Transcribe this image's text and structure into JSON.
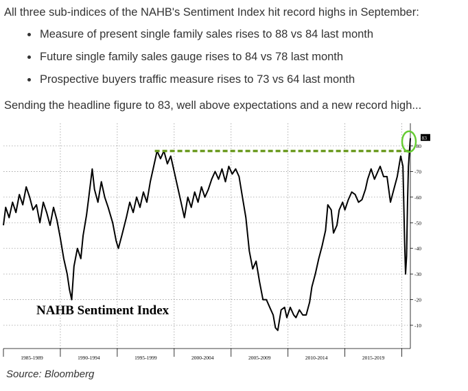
{
  "intro": "All three sub-indices of the NAHB's Sentiment Index hit record highs in September:",
  "bullets": [
    "Measure of present single family sales rises to 88 vs 84 last month",
    "Future single family sales gauge rises to 84 vs 78 last month",
    "Prospective buyers traffic measure rises to 73 vs 64 last month"
  ],
  "outro": "Sending the headline figure to 83, well above expectations and a new record high...",
  "source": "Source: Bloomberg",
  "colors": {
    "line": "#000000",
    "record_line": "#6a9a1f",
    "highlight_circle": "#66cc33",
    "last_value_badge": "#000000"
  },
  "chart_data": {
    "type": "line",
    "title": "NAHB Sentiment Index",
    "xlabel": "",
    "ylabel": "",
    "y_axis_side": "right",
    "ylim": [
      0,
      90
    ],
    "yticks": [
      10,
      20,
      30,
      40,
      50,
      60,
      70,
      80
    ],
    "x_range": [
      1985.0,
      2020.75
    ],
    "x_period_labels": [
      "1985-1989",
      "1990-1994",
      "1995-1999",
      "2000-2004",
      "2005-2009",
      "2010-2014",
      "2015-2019"
    ],
    "grid": true,
    "last_value_label": "83",
    "record_line": {
      "value": 78,
      "start": 1998.3,
      "end": 2020.75
    },
    "series": [
      {
        "values": [
          [
            1985.0,
            49
          ],
          [
            1985.2,
            56
          ],
          [
            1985.5,
            52
          ],
          [
            1985.8,
            58
          ],
          [
            1986.1,
            54
          ],
          [
            1986.4,
            61
          ],
          [
            1986.7,
            57
          ],
          [
            1987.0,
            64
          ],
          [
            1987.3,
            60
          ],
          [
            1987.6,
            55
          ],
          [
            1987.9,
            57
          ],
          [
            1988.2,
            50
          ],
          [
            1988.5,
            58
          ],
          [
            1988.8,
            54
          ],
          [
            1989.1,
            49
          ],
          [
            1989.4,
            56
          ],
          [
            1989.7,
            51
          ],
          [
            1990.0,
            44
          ],
          [
            1990.3,
            36
          ],
          [
            1990.6,
            30
          ],
          [
            1990.8,
            24
          ],
          [
            1991.0,
            20
          ],
          [
            1991.2,
            33
          ],
          [
            1991.5,
            40
          ],
          [
            1991.8,
            36
          ],
          [
            1992.0,
            45
          ],
          [
            1992.3,
            53
          ],
          [
            1992.5,
            60
          ],
          [
            1992.8,
            71
          ],
          [
            1993.0,
            63
          ],
          [
            1993.3,
            58
          ],
          [
            1993.6,
            66
          ],
          [
            1993.9,
            60
          ],
          [
            1994.2,
            56
          ],
          [
            1994.6,
            50
          ],
          [
            1994.9,
            43
          ],
          [
            1995.1,
            40
          ],
          [
            1995.4,
            45
          ],
          [
            1995.8,
            52
          ],
          [
            1996.1,
            58
          ],
          [
            1996.4,
            54
          ],
          [
            1996.7,
            60
          ],
          [
            1997.0,
            56
          ],
          [
            1997.3,
            62
          ],
          [
            1997.6,
            58
          ],
          [
            1997.9,
            66
          ],
          [
            1998.2,
            72
          ],
          [
            1998.5,
            78
          ],
          [
            1998.8,
            75
          ],
          [
            1999.1,
            78
          ],
          [
            1999.4,
            73
          ],
          [
            1999.7,
            76
          ],
          [
            2000.0,
            70
          ],
          [
            2000.3,
            64
          ],
          [
            2000.6,
            58
          ],
          [
            2000.9,
            52
          ],
          [
            2001.2,
            60
          ],
          [
            2001.5,
            56
          ],
          [
            2001.8,
            62
          ],
          [
            2002.1,
            58
          ],
          [
            2002.4,
            64
          ],
          [
            2002.7,
            60
          ],
          [
            2003.0,
            63
          ],
          [
            2003.3,
            67
          ],
          [
            2003.6,
            70
          ],
          [
            2003.9,
            67
          ],
          [
            2004.2,
            71
          ],
          [
            2004.5,
            66
          ],
          [
            2004.8,
            72
          ],
          [
            2005.1,
            69
          ],
          [
            2005.4,
            71
          ],
          [
            2005.7,
            68
          ],
          [
            2006.0,
            60
          ],
          [
            2006.3,
            52
          ],
          [
            2006.6,
            39
          ],
          [
            2006.9,
            32
          ],
          [
            2007.2,
            35
          ],
          [
            2007.5,
            27
          ],
          [
            2007.8,
            20
          ],
          [
            2008.1,
            20
          ],
          [
            2008.4,
            17
          ],
          [
            2008.7,
            14
          ],
          [
            2008.9,
            9
          ],
          [
            2009.1,
            8
          ],
          [
            2009.4,
            16
          ],
          [
            2009.7,
            17
          ],
          [
            2009.9,
            13
          ],
          [
            2010.2,
            17
          ],
          [
            2010.5,
            14
          ],
          [
            2010.7,
            13
          ],
          [
            2011.0,
            16
          ],
          [
            2011.3,
            14
          ],
          [
            2011.6,
            14
          ],
          [
            2011.9,
            19
          ],
          [
            2012.1,
            25
          ],
          [
            2012.4,
            30
          ],
          [
            2012.7,
            36
          ],
          [
            2013.0,
            41
          ],
          [
            2013.3,
            47
          ],
          [
            2013.5,
            57
          ],
          [
            2013.8,
            55
          ],
          [
            2014.0,
            46
          ],
          [
            2014.3,
            49
          ],
          [
            2014.5,
            55
          ],
          [
            2014.8,
            58
          ],
          [
            2015.0,
            55
          ],
          [
            2015.3,
            59
          ],
          [
            2015.6,
            62
          ],
          [
            2015.9,
            61
          ],
          [
            2016.2,
            58
          ],
          [
            2016.5,
            59
          ],
          [
            2016.8,
            63
          ],
          [
            2017.0,
            67
          ],
          [
            2017.3,
            71
          ],
          [
            2017.6,
            67
          ],
          [
            2017.9,
            70
          ],
          [
            2018.1,
            72
          ],
          [
            2018.4,
            68
          ],
          [
            2018.7,
            68
          ],
          [
            2019.0,
            58
          ],
          [
            2019.3,
            63
          ],
          [
            2019.6,
            68
          ],
          [
            2019.9,
            76
          ],
          [
            2020.1,
            72
          ],
          [
            2020.25,
            42
          ],
          [
            2020.33,
            30
          ],
          [
            2020.42,
            37
          ],
          [
            2020.5,
            58
          ],
          [
            2020.58,
            72
          ],
          [
            2020.67,
            78
          ],
          [
            2020.75,
            83
          ]
        ]
      }
    ]
  }
}
